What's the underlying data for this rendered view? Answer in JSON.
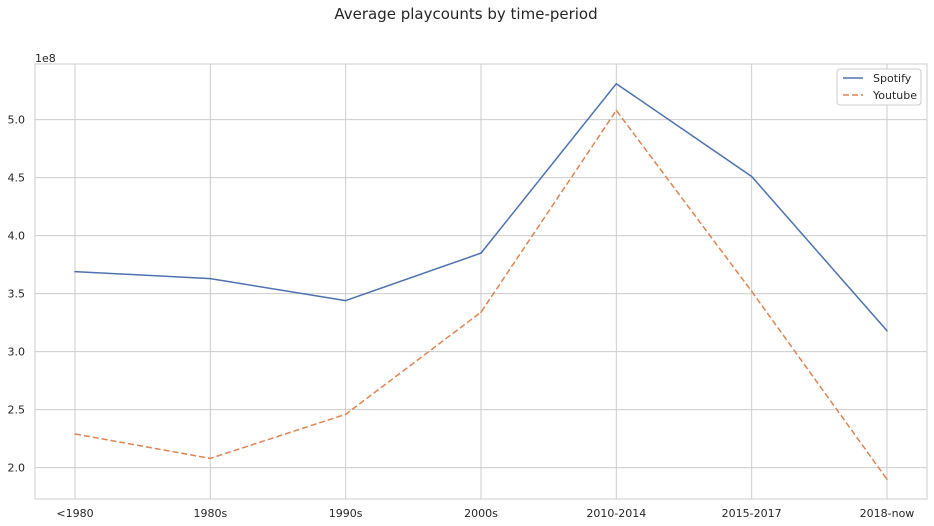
{
  "chart_data": {
    "type": "line",
    "title": "Average playcounts by time-period",
    "xlabel": "",
    "ylabel": "",
    "y_scale_label": "1e8",
    "categories": [
      "<1980",
      "1980s",
      "1990s",
      "2000s",
      "2010-2014",
      "2015-2017",
      "2018-now"
    ],
    "y_ticks": [
      2.0,
      2.5,
      3.0,
      3.5,
      4.0,
      4.5,
      5.0
    ],
    "y_tick_labels": [
      "2.0",
      "2.5",
      "3.0",
      "3.5",
      "4.0",
      "4.5",
      "5.0"
    ],
    "ylim": [
      1.73,
      5.48
    ],
    "grid": true,
    "legend": "top-right",
    "series": [
      {
        "name": "Spotify",
        "values": [
          3.69,
          3.63,
          3.44,
          3.85,
          5.31,
          4.51,
          3.18
        ],
        "color": "#4c72b0",
        "style": "solid"
      },
      {
        "name": "Youtube",
        "values": [
          2.29,
          2.08,
          2.46,
          3.34,
          5.08,
          3.52,
          1.9
        ],
        "color": "#dd8452",
        "style": "dashed"
      }
    ]
  }
}
